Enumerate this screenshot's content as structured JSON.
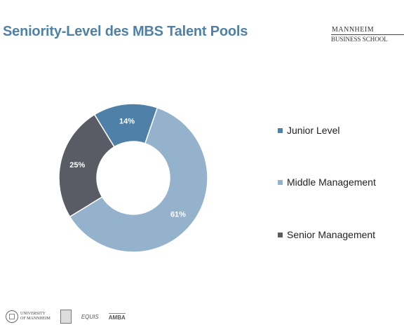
{
  "header": {
    "title": "Seniority-Level des MBS Talent Pools",
    "logo_line1": "MANNHEIM",
    "logo_line2": "BUSINESS SCHOOL"
  },
  "chart_data": {
    "type": "pie",
    "donut": true,
    "categories": [
      "Junior Level",
      "Middle Management",
      "Senior Management"
    ],
    "values": [
      14,
      61,
      25
    ],
    "labels": [
      "14%",
      "61%",
      "25%"
    ],
    "colors": [
      "#4f81a8",
      "#94b2cc",
      "#595b65"
    ],
    "legend_position": "right"
  },
  "footer": {
    "university": [
      "UNIVERSITY",
      "OF MANNHEIM"
    ],
    "equis": "EQUIS",
    "amba": "AMBA"
  }
}
